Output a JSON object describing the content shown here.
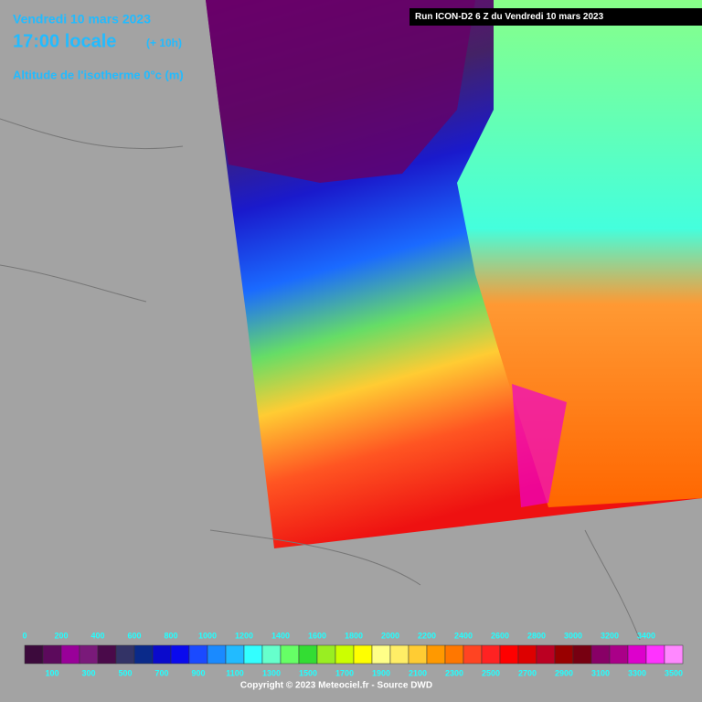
{
  "header": {
    "date": "Vendredi 10 mars 2023",
    "time": "17:00 locale",
    "offset": "(+ 10h)",
    "parameter": "Altitude de l'isotherme 0°c (m)",
    "run": "Run ICON-D2 6 Z du Vendredi 10 mars 2023"
  },
  "legend": {
    "levels": [
      0,
      100,
      200,
      300,
      400,
      500,
      600,
      700,
      800,
      900,
      1000,
      1100,
      1200,
      1300,
      1400,
      1500,
      1600,
      1700,
      1800,
      1900,
      2000,
      2100,
      2200,
      2300,
      2400,
      2500,
      2600,
      2700,
      2800,
      2900,
      3000,
      3100,
      3200,
      3300,
      3400,
      3500
    ],
    "colors": [
      "#3c0a3c",
      "#5c0a5c",
      "#990099",
      "#7a1a7a",
      "#4a0a4a",
      "#333366",
      "#0a2a8a",
      "#0a0acc",
      "#0a0aee",
      "#1a4aff",
      "#1a8aff",
      "#22bbff",
      "#33ffff",
      "#66ffcc",
      "#66ff66",
      "#33dd33",
      "#99ee22",
      "#ccff00",
      "#ffff00",
      "#ffff88",
      "#ffee66",
      "#ffcc33",
      "#ff9900",
      "#ff7700",
      "#ff4422",
      "#ff2222",
      "#ff0000",
      "#dd0000",
      "#bb0022",
      "#990000",
      "#770011",
      "#880066",
      "#aa0088",
      "#dd00cc",
      "#ff33ff",
      "#ff88ff"
    ]
  },
  "footer": {
    "copyright": "Copyright © 2023 Meteociel.fr - Source DWD"
  }
}
